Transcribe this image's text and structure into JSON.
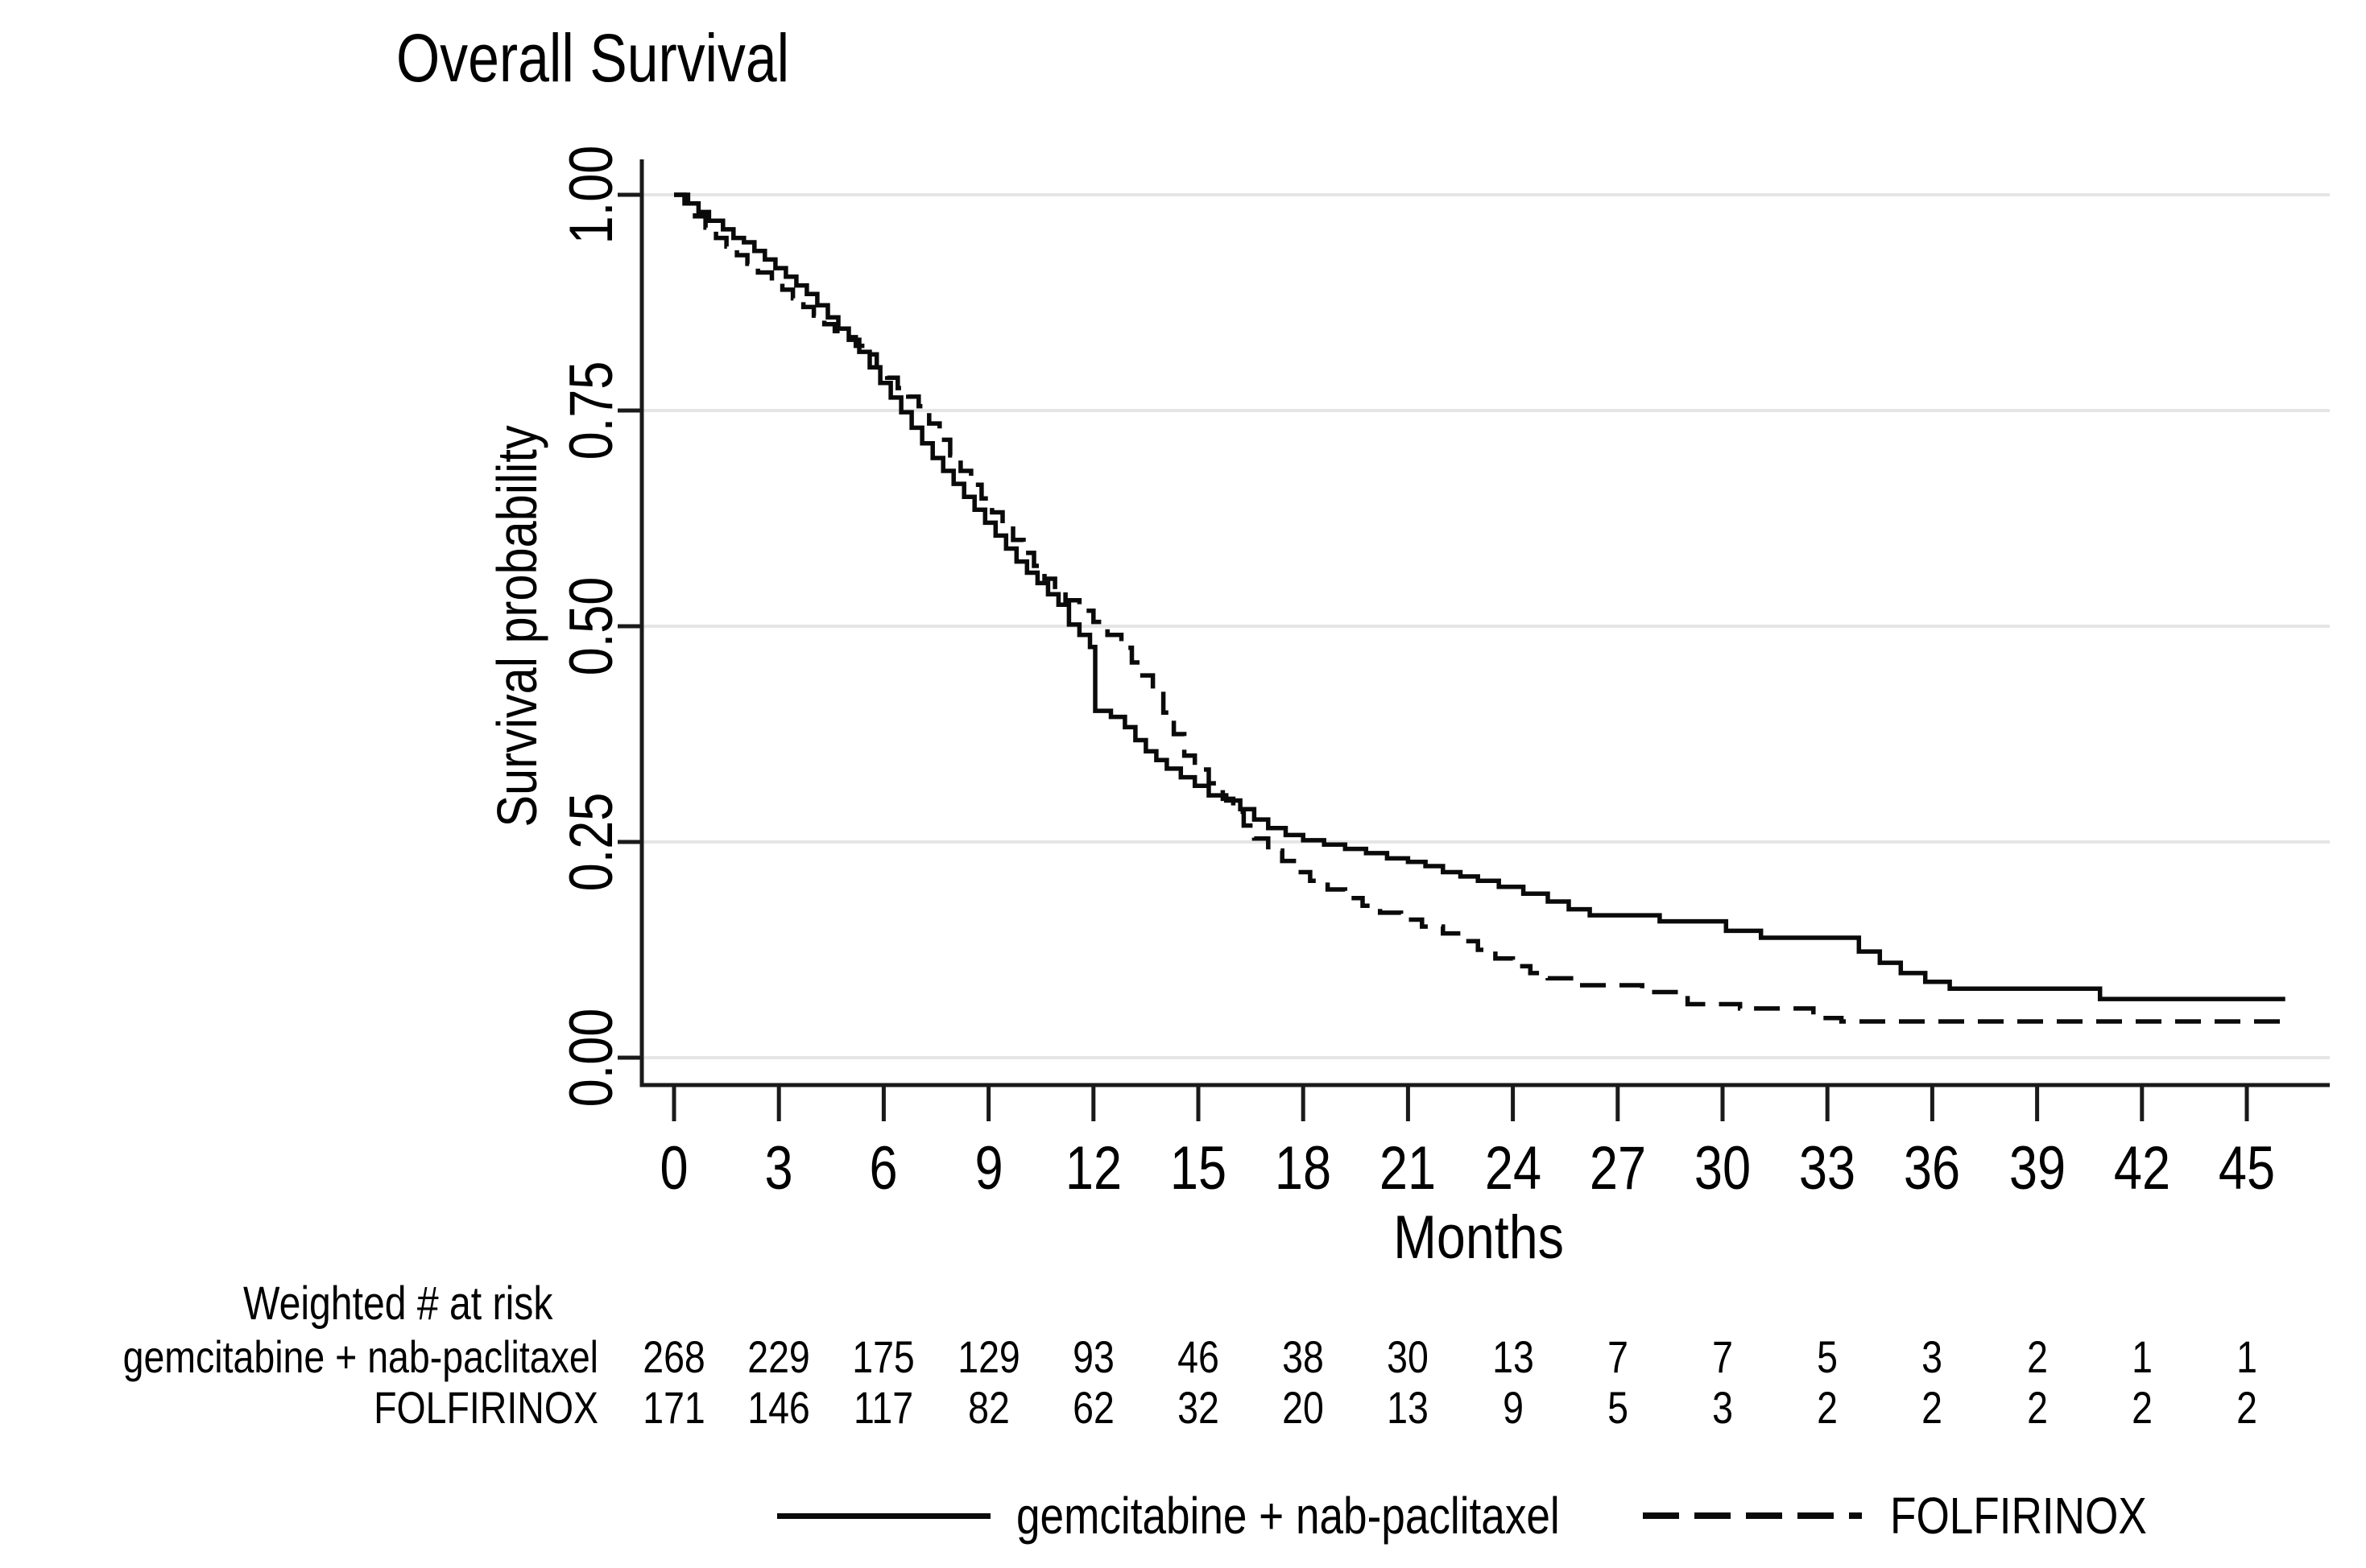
{
  "title": "Overall Survival",
  "chart_data": {
    "type": "line",
    "subtype": "kaplan-meier-step",
    "title": "Overall Survival",
    "xlabel": "Months",
    "ylabel": "Survival probability",
    "xlim": [
      0,
      47.5
    ],
    "ylim": [
      0,
      1
    ],
    "grid": "horizontal-light",
    "legend_position": "bottom",
    "x_ticks": [
      0,
      3,
      6,
      9,
      12,
      15,
      18,
      21,
      24,
      27,
      30,
      33,
      36,
      39,
      42,
      45
    ],
    "y_ticks": [
      {
        "value": 0,
        "label": "0.00"
      },
      {
        "value": 0.25,
        "label": "0.25"
      },
      {
        "value": 0.5,
        "label": "0.50"
      },
      {
        "value": 0.75,
        "label": "0.75"
      },
      {
        "value": 1,
        "label": "1.00"
      }
    ],
    "series": [
      {
        "name": "gemcitabine + nab-paclitaxel",
        "line_style": "solid",
        "color": "#0a0a0a",
        "points": [
          [
            0,
            1
          ],
          [
            0.4,
            0.99
          ],
          [
            0.7,
            0.98
          ],
          [
            1,
            0.97
          ],
          [
            1.4,
            0.96
          ],
          [
            1.7,
            0.95
          ],
          [
            2,
            0.945
          ],
          [
            2.3,
            0.935
          ],
          [
            2.6,
            0.925
          ],
          [
            2.9,
            0.915
          ],
          [
            3.2,
            0.905
          ],
          [
            3.5,
            0.895
          ],
          [
            3.8,
            0.885
          ],
          [
            4.1,
            0.872
          ],
          [
            4.4,
            0.858
          ],
          [
            4.7,
            0.845
          ],
          [
            5,
            0.832
          ],
          [
            5.3,
            0.818
          ],
          [
            5.6,
            0.8
          ],
          [
            5.9,
            0.782
          ],
          [
            6.2,
            0.765
          ],
          [
            6.5,
            0.748
          ],
          [
            6.8,
            0.73
          ],
          [
            7.1,
            0.712
          ],
          [
            7.4,
            0.695
          ],
          [
            7.7,
            0.68
          ],
          [
            8,
            0.665
          ],
          [
            8.3,
            0.65
          ],
          [
            8.6,
            0.635
          ],
          [
            8.9,
            0.62
          ],
          [
            9.2,
            0.605
          ],
          [
            9.5,
            0.59
          ],
          [
            9.8,
            0.575
          ],
          [
            10.1,
            0.562
          ],
          [
            10.4,
            0.55
          ],
          [
            10.7,
            0.537
          ],
          [
            11,
            0.525
          ],
          [
            11.3,
            0.502
          ],
          [
            11.6,
            0.49
          ],
          [
            11.9,
            0.476
          ],
          [
            12.05,
            0.402
          ],
          [
            12.5,
            0.395
          ],
          [
            12.9,
            0.383
          ],
          [
            13.2,
            0.368
          ],
          [
            13.5,
            0.355
          ],
          [
            13.8,
            0.345
          ],
          [
            14.1,
            0.335
          ],
          [
            14.5,
            0.325
          ],
          [
            14.9,
            0.315
          ],
          [
            15.3,
            0.304
          ],
          [
            15.8,
            0.298
          ],
          [
            16.2,
            0.288
          ],
          [
            16.6,
            0.276
          ],
          [
            17,
            0.266
          ],
          [
            17.5,
            0.258
          ],
          [
            18,
            0.252
          ],
          [
            18.6,
            0.247
          ],
          [
            19.2,
            0.242
          ],
          [
            19.8,
            0.237
          ],
          [
            20.4,
            0.231
          ],
          [
            21,
            0.227
          ],
          [
            21.5,
            0.222
          ],
          [
            22,
            0.215
          ],
          [
            22.5,
            0.21
          ],
          [
            23,
            0.205
          ],
          [
            23.6,
            0.198
          ],
          [
            24.3,
            0.19
          ],
          [
            25,
            0.181
          ],
          [
            25.6,
            0.172
          ],
          [
            26.2,
            0.165
          ],
          [
            28.2,
            0.158
          ],
          [
            30.1,
            0.147
          ],
          [
            31.1,
            0.139
          ],
          [
            33.9,
            0.123
          ],
          [
            34.5,
            0.11
          ],
          [
            35.1,
            0.098
          ],
          [
            35.8,
            0.088
          ],
          [
            36.5,
            0.08
          ],
          [
            40.8,
            0.068
          ],
          [
            46.1,
            0.068
          ]
        ]
      },
      {
        "name": "FOLFIRINOX",
        "line_style": "dashed",
        "color": "#0a0a0a",
        "points": [
          [
            0,
            1
          ],
          [
            0.3,
            0.99
          ],
          [
            0.6,
            0.975
          ],
          [
            0.9,
            0.962
          ],
          [
            1.2,
            0.95
          ],
          [
            1.5,
            0.94
          ],
          [
            1.8,
            0.93
          ],
          [
            2.1,
            0.92
          ],
          [
            2.4,
            0.91
          ],
          [
            2.8,
            0.9
          ],
          [
            3.1,
            0.89
          ],
          [
            3.4,
            0.88
          ],
          [
            3.7,
            0.87
          ],
          [
            4,
            0.86
          ],
          [
            4.3,
            0.85
          ],
          [
            4.6,
            0.842
          ],
          [
            4.9,
            0.835
          ],
          [
            5.2,
            0.825
          ],
          [
            5.5,
            0.815
          ],
          [
            5.8,
            0.8
          ],
          [
            6.1,
            0.788
          ],
          [
            6.4,
            0.776
          ],
          [
            6.7,
            0.766
          ],
          [
            7,
            0.755
          ],
          [
            7.3,
            0.735
          ],
          [
            7.6,
            0.716
          ],
          [
            7.9,
            0.698
          ],
          [
            8.2,
            0.68
          ],
          [
            8.5,
            0.664
          ],
          [
            8.8,
            0.648
          ],
          [
            9.1,
            0.632
          ],
          [
            9.4,
            0.616
          ],
          [
            9.7,
            0.6
          ],
          [
            10,
            0.585
          ],
          [
            10.3,
            0.57
          ],
          [
            10.6,
            0.555
          ],
          [
            10.9,
            0.541
          ],
          [
            11.2,
            0.53
          ],
          [
            11.6,
            0.518
          ],
          [
            12,
            0.505
          ],
          [
            12.4,
            0.49
          ],
          [
            12.8,
            0.475
          ],
          [
            13.1,
            0.458
          ],
          [
            13.4,
            0.443
          ],
          [
            13.7,
            0.425
          ],
          [
            14,
            0.4
          ],
          [
            14.3,
            0.375
          ],
          [
            14.6,
            0.35
          ],
          [
            14.9,
            0.334
          ],
          [
            15.3,
            0.318
          ],
          [
            15.7,
            0.3
          ],
          [
            16,
            0.285
          ],
          [
            16.3,
            0.269
          ],
          [
            16.6,
            0.254
          ],
          [
            17,
            0.24
          ],
          [
            17.4,
            0.228
          ],
          [
            17.8,
            0.215
          ],
          [
            18.2,
            0.205
          ],
          [
            18.7,
            0.195
          ],
          [
            19.2,
            0.185
          ],
          [
            19.7,
            0.176
          ],
          [
            20.2,
            0.168
          ],
          [
            20.8,
            0.16
          ],
          [
            21.4,
            0.152
          ],
          [
            22,
            0.144
          ],
          [
            22.5,
            0.135
          ],
          [
            23,
            0.125
          ],
          [
            23.5,
            0.115
          ],
          [
            24,
            0.106
          ],
          [
            24.5,
            0.098
          ],
          [
            25,
            0.092
          ],
          [
            25.9,
            0.084
          ],
          [
            27.7,
            0.076
          ],
          [
            29,
            0.062
          ],
          [
            30.5,
            0.057
          ],
          [
            32.6,
            0.046
          ],
          [
            33.4,
            0.042
          ],
          [
            46.1,
            0.042
          ]
        ]
      }
    ]
  },
  "risk_table": {
    "header": "Weighted # at risk",
    "time_points": [
      0,
      3,
      6,
      9,
      12,
      15,
      18,
      21,
      24,
      27,
      30,
      33,
      36,
      39,
      42,
      45
    ],
    "rows": [
      {
        "label": "gemcitabine + nab-paclitaxel",
        "counts": [
          268,
          229,
          175,
          129,
          93,
          46,
          38,
          30,
          13,
          7,
          7,
          5,
          3,
          2,
          1,
          1
        ]
      },
      {
        "label": "FOLFIRINOX",
        "counts": [
          171,
          146,
          117,
          82,
          62,
          32,
          20,
          13,
          9,
          5,
          3,
          2,
          2,
          2,
          2,
          2
        ]
      }
    ]
  },
  "legend": {
    "items": [
      {
        "label": "gemcitabine + nab-paclitaxel",
        "line_style": "solid"
      },
      {
        "label": "FOLFIRINOX",
        "line_style": "dashed"
      }
    ]
  },
  "colors": {
    "text": "#000000",
    "curve": "#0a0a0a",
    "grid": "#e5e5e5",
    "axis": "#1a1a1a",
    "background": "#ffffff"
  }
}
